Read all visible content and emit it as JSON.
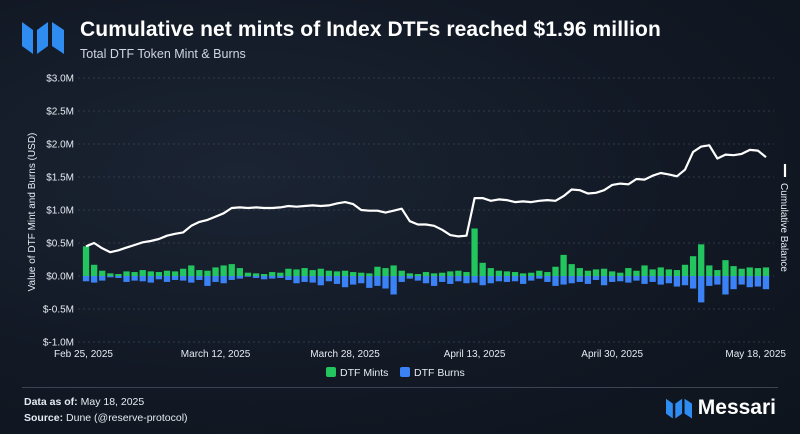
{
  "header": {
    "title": "Cumulative net mints of Index DTFs reached $1.96 million",
    "subtitle": "Total DTF Token Mint & Burns"
  },
  "footer": {
    "data_label": "Data as of:",
    "data_value": "May 18, 2025",
    "source_label": "Source:",
    "source_value": "Dune (@reserve-protocol)",
    "brand": "Messari"
  },
  "colors": {
    "mints": "#22c55e",
    "burns": "#3b82f6",
    "balance": "#ffffff",
    "brand": "#2f8cf0"
  },
  "chart_data": {
    "type": "bar",
    "ylabel": "Value of DTF Mint and Burns (USD)",
    "y2label": "Cumulative Balance",
    "ylim": [
      -1000000,
      3000000
    ],
    "yticks": [
      {
        "v": 3000000,
        "label": "$3.0M"
      },
      {
        "v": 2500000,
        "label": "$2.5M"
      },
      {
        "v": 2000000,
        "label": "$2.0M"
      },
      {
        "v": 1500000,
        "label": "$1.5M"
      },
      {
        "v": 1000000,
        "label": "$1.0M"
      },
      {
        "v": 500000,
        "label": "$0.5M"
      },
      {
        "v": 0,
        "label": "$0.0M"
      },
      {
        "v": -500000,
        "label": "$-0.5M"
      },
      {
        "v": -1000000,
        "label": "$-1.0M"
      }
    ],
    "xticks": [
      {
        "i": 0,
        "label": "Feb 25, 2025"
      },
      {
        "i": 16,
        "label": "March 12, 2025"
      },
      {
        "i": 32,
        "label": "March 28, 2025"
      },
      {
        "i": 48,
        "label": "April 13, 2025"
      },
      {
        "i": 65,
        "label": "April 30, 2025"
      },
      {
        "i": 82,
        "label": "May 18, 2025"
      }
    ],
    "grid": true,
    "legend": {
      "position": "bottom-center",
      "items": [
        "DTF Mints",
        "DTF Burns"
      ]
    },
    "series": [
      {
        "name": "DTF Mints",
        "type": "bar",
        "values": [
          450000,
          170000,
          80000,
          40000,
          30000,
          70000,
          60000,
          90000,
          70000,
          60000,
          80000,
          70000,
          110000,
          160000,
          90000,
          80000,
          130000,
          160000,
          180000,
          120000,
          50000,
          40000,
          30000,
          60000,
          50000,
          110000,
          100000,
          120000,
          90000,
          110000,
          80000,
          70000,
          80000,
          60000,
          50000,
          40000,
          140000,
          120000,
          160000,
          80000,
          40000,
          30000,
          60000,
          40000,
          50000,
          70000,
          80000,
          60000,
          720000,
          200000,
          120000,
          80000,
          70000,
          60000,
          40000,
          50000,
          80000,
          60000,
          140000,
          320000,
          180000,
          120000,
          80000,
          100000,
          110000,
          70000,
          50000,
          120000,
          80000,
          160000,
          100000,
          130000,
          100000,
          90000,
          170000,
          300000,
          480000,
          160000,
          90000,
          240000,
          150000,
          110000,
          130000,
          120000,
          130000
        ],
        "neg": [
          -80000,
          -100000,
          -70000,
          -20000,
          -30000,
          -90000,
          -70000,
          -80000,
          -100000,
          -50000,
          -90000,
          -60000,
          -70000,
          -100000,
          -60000,
          -150000,
          -90000,
          -110000,
          -60000,
          -40000,
          -10000,
          -30000,
          -50000,
          -40000,
          -30000,
          -60000,
          -110000,
          -90000,
          -100000,
          -140000,
          -80000,
          -120000,
          -170000,
          -130000,
          -110000,
          -180000,
          -150000,
          -190000,
          -280000,
          -90000,
          -40000,
          -70000,
          -110000,
          -150000,
          -90000,
          -120000,
          -80000,
          -110000,
          -100000,
          -140000,
          -110000,
          -80000,
          -90000,
          -80000,
          -120000,
          -70000,
          -40000,
          -90000,
          -150000,
          -130000,
          -110000,
          -90000,
          -120000,
          -60000,
          -140000,
          -90000,
          -80000,
          -100000,
          -70000,
          -120000,
          -90000,
          -130000,
          -110000,
          -160000,
          -140000,
          -190000,
          -400000,
          -150000,
          -130000,
          -280000,
          -200000,
          -130000,
          -170000,
          -160000,
          -200000
        ]
      },
      {
        "name": "Cumulative Balance",
        "type": "line",
        "values": [
          450000,
          500000,
          420000,
          360000,
          390000,
          430000,
          470000,
          510000,
          530000,
          560000,
          610000,
          640000,
          660000,
          760000,
          820000,
          850000,
          900000,
          950000,
          1030000,
          1040000,
          1030000,
          1040000,
          1030000,
          1030000,
          1040000,
          1060000,
          1050000,
          1060000,
          1070000,
          1060000,
          1070000,
          1100000,
          1120000,
          1090000,
          1000000,
          990000,
          990000,
          960000,
          990000,
          1020000,
          830000,
          780000,
          780000,
          760000,
          700000,
          620000,
          600000,
          610000,
          1180000,
          1180000,
          1140000,
          1160000,
          1150000,
          1120000,
          1130000,
          1120000,
          1140000,
          1150000,
          1140000,
          1210000,
          1310000,
          1300000,
          1250000,
          1260000,
          1300000,
          1380000,
          1400000,
          1390000,
          1470000,
          1460000,
          1520000,
          1560000,
          1540000,
          1510000,
          1610000,
          1880000,
          1960000,
          1980000,
          1780000,
          1840000,
          1830000,
          1850000,
          1910000,
          1900000,
          1800000
        ]
      }
    ]
  }
}
